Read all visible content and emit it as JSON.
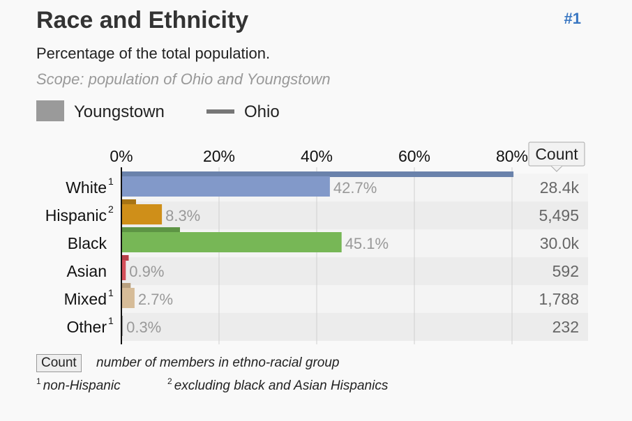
{
  "header": {
    "title": "Race and Ethnicity",
    "rank": "#1",
    "subtitle": "Percentage of the total population.",
    "scope": "Scope: population of Ohio and Youngstown"
  },
  "legend": {
    "youngstown": "Youngstown",
    "ohio": "Ohio"
  },
  "colors": {
    "ohio_bar": "#6f85ad",
    "accent_rank": "#3a77c2"
  },
  "chart_data": {
    "type": "bar",
    "orientation": "horizontal",
    "x_ticks": [
      "0%",
      "20%",
      "40%",
      "60%",
      "80%"
    ],
    "xlim": [
      0,
      80
    ],
    "count_header": "Count",
    "categories": [
      {
        "label": "White",
        "sup": "1",
        "youngstown": 42.7,
        "ohio": 80.3,
        "value_label": "42.7%",
        "count": "28.4k",
        "color": "#8299c9",
        "ohio_color": "#6a82ab"
      },
      {
        "label": "Hispanic",
        "sup": "2",
        "youngstown": 8.3,
        "ohio": 3.0,
        "value_label": "8.3%",
        "count": "5,495",
        "color": "#cf8f19",
        "ohio_color": "#a77414"
      },
      {
        "label": "Black",
        "sup": "",
        "youngstown": 45.1,
        "ohio": 12.0,
        "value_label": "45.1%",
        "count": "30.0k",
        "color": "#77b756",
        "ohio_color": "#5d9444"
      },
      {
        "label": "Asian",
        "sup": "",
        "youngstown": 0.9,
        "ohio": 1.5,
        "value_label": "0.9%",
        "count": "592",
        "color": "#d4505a",
        "ohio_color": "#b83f49"
      },
      {
        "label": "Mixed",
        "sup": "1",
        "youngstown": 2.7,
        "ohio": 1.9,
        "value_label": "2.7%",
        "count": "1,788",
        "color": "#d6bc98",
        "ohio_color": "#b8a07f"
      },
      {
        "label": "Other",
        "sup": "1",
        "youngstown": 0.3,
        "ohio": 0.1,
        "value_label": "0.3%",
        "count": "232",
        "color": "#9a9a9a",
        "ohio_color": "#888888"
      }
    ],
    "series": [
      {
        "name": "Youngstown"
      },
      {
        "name": "Ohio"
      }
    ]
  },
  "footer": {
    "count_label": "Count",
    "count_desc": "number of members in ethno-racial group",
    "note1_sup": "1",
    "note1": "non-Hispanic",
    "note2_sup": "2",
    "note2": "excluding black and Asian Hispanics"
  }
}
